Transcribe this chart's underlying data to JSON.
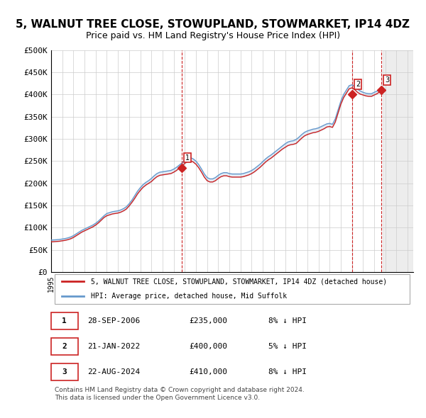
{
  "title": "5, WALNUT TREE CLOSE, STOWUPLAND, STOWMARKET, IP14 4DZ",
  "subtitle": "Price paid vs. HM Land Registry's House Price Index (HPI)",
  "xlabel": "",
  "ylabel": "",
  "ylim": [
    0,
    500000
  ],
  "yticks": [
    0,
    50000,
    100000,
    150000,
    200000,
    250000,
    300000,
    350000,
    400000,
    450000,
    500000
  ],
  "ytick_labels": [
    "£0",
    "£50K",
    "£100K",
    "£150K",
    "£200K",
    "£250K",
    "£300K",
    "£350K",
    "£400K",
    "£450K",
    "£500K"
  ],
  "xlim_start": 1995.0,
  "xlim_end": 2027.5,
  "hpi_color": "#6699cc",
  "price_color": "#cc2222",
  "bg_color": "#ffffff",
  "plot_bg_color": "#ffffff",
  "grid_color": "#cccccc",
  "title_fontsize": 11,
  "subtitle_fontsize": 9,
  "annotation_marker_color": "#cc2222",
  "sales": [
    {
      "label": "1",
      "date_num": 2006.74,
      "price": 235000
    },
    {
      "label": "2",
      "date_num": 2022.05,
      "price": 400000
    },
    {
      "label": "3",
      "date_num": 2024.64,
      "price": 410000
    }
  ],
  "legend_line1": "5, WALNUT TREE CLOSE, STOWUPLAND, STOWMARKET, IP14 4DZ (detached house)",
  "legend_line2": "HPI: Average price, detached house, Mid Suffolk",
  "table_rows": [
    {
      "num": "1",
      "date": "28-SEP-2006",
      "price": "£235,000",
      "note": "8% ↓ HPI"
    },
    {
      "num": "2",
      "date": "21-JAN-2022",
      "price": "£400,000",
      "note": "5% ↓ HPI"
    },
    {
      "num": "3",
      "date": "22-AUG-2024",
      "price": "£410,000",
      "note": "8% ↓ HPI"
    }
  ],
  "footer": "Contains HM Land Registry data © Crown copyright and database right 2024.\nThis data is licensed under the Open Government Licence v3.0.",
  "hpi_data_x": [
    1995.0,
    1995.25,
    1995.5,
    1995.75,
    1996.0,
    1996.25,
    1996.5,
    1996.75,
    1997.0,
    1997.25,
    1997.5,
    1997.75,
    1998.0,
    1998.25,
    1998.5,
    1998.75,
    1999.0,
    1999.25,
    1999.5,
    1999.75,
    2000.0,
    2000.25,
    2000.5,
    2000.75,
    2001.0,
    2001.25,
    2001.5,
    2001.75,
    2002.0,
    2002.25,
    2002.5,
    2002.75,
    2003.0,
    2003.25,
    2003.5,
    2003.75,
    2004.0,
    2004.25,
    2004.5,
    2004.75,
    2005.0,
    2005.25,
    2005.5,
    2005.75,
    2006.0,
    2006.25,
    2006.5,
    2006.75,
    2007.0,
    2007.25,
    2007.5,
    2007.75,
    2008.0,
    2008.25,
    2008.5,
    2008.75,
    2009.0,
    2009.25,
    2009.5,
    2009.75,
    2010.0,
    2010.25,
    2010.5,
    2010.75,
    2011.0,
    2011.25,
    2011.5,
    2011.75,
    2012.0,
    2012.25,
    2012.5,
    2012.75,
    2013.0,
    2013.25,
    2013.5,
    2013.75,
    2014.0,
    2014.25,
    2014.5,
    2014.75,
    2015.0,
    2015.25,
    2015.5,
    2015.75,
    2016.0,
    2016.25,
    2016.5,
    2016.75,
    2017.0,
    2017.25,
    2017.5,
    2017.75,
    2018.0,
    2018.25,
    2018.5,
    2018.75,
    2019.0,
    2019.25,
    2019.5,
    2019.75,
    2020.0,
    2020.25,
    2020.5,
    2020.75,
    2021.0,
    2021.25,
    2021.5,
    2021.75,
    2022.0,
    2022.25,
    2022.5,
    2022.75,
    2023.0,
    2023.25,
    2023.5,
    2023.75,
    2024.0,
    2024.25,
    2024.5
  ],
  "hpi_data_y": [
    72000,
    72500,
    73000,
    73500,
    74500,
    75500,
    77000,
    79000,
    82000,
    86000,
    90000,
    94000,
    97000,
    100000,
    103000,
    106000,
    110000,
    115000,
    121000,
    127000,
    132000,
    134000,
    136000,
    137000,
    138000,
    140000,
    143000,
    147000,
    154000,
    162000,
    172000,
    182000,
    190000,
    197000,
    202000,
    206000,
    211000,
    217000,
    222000,
    225000,
    226000,
    227000,
    228000,
    229000,
    232000,
    236000,
    241000,
    246000,
    252000,
    256000,
    258000,
    255000,
    250000,
    242000,
    232000,
    221000,
    213000,
    210000,
    210000,
    213000,
    218000,
    222000,
    224000,
    224000,
    222000,
    221000,
    221000,
    221000,
    221000,
    222000,
    224000,
    226000,
    229000,
    233000,
    238000,
    243000,
    249000,
    255000,
    260000,
    264000,
    269000,
    274000,
    279000,
    284000,
    289000,
    293000,
    295000,
    296000,
    299000,
    304000,
    310000,
    315000,
    318000,
    320000,
    322000,
    323000,
    325000,
    328000,
    331000,
    334000,
    335000,
    333000,
    345000,
    365000,
    385000,
    400000,
    410000,
    420000,
    422000,
    418000,
    412000,
    408000,
    405000,
    403000,
    402000,
    402000,
    405000,
    408000,
    412000
  ],
  "price_index_x": [
    1995.0,
    1995.25,
    1995.5,
    1995.75,
    1996.0,
    1996.25,
    1996.5,
    1996.75,
    1997.0,
    1997.25,
    1997.5,
    1997.75,
    1998.0,
    1998.25,
    1998.5,
    1998.75,
    1999.0,
    1999.25,
    1999.5,
    1999.75,
    2000.0,
    2000.25,
    2000.5,
    2000.75,
    2001.0,
    2001.25,
    2001.5,
    2001.75,
    2002.0,
    2002.25,
    2002.5,
    2002.75,
    2003.0,
    2003.25,
    2003.5,
    2003.75,
    2004.0,
    2004.25,
    2004.5,
    2004.75,
    2005.0,
    2005.25,
    2005.5,
    2005.75,
    2006.0,
    2006.25,
    2006.5,
    2006.75,
    2007.0,
    2007.25,
    2007.5,
    2007.75,
    2008.0,
    2008.25,
    2008.5,
    2008.75,
    2009.0,
    2009.25,
    2009.5,
    2009.75,
    2010.0,
    2010.25,
    2010.5,
    2010.75,
    2011.0,
    2011.25,
    2011.5,
    2011.75,
    2012.0,
    2012.25,
    2012.5,
    2012.75,
    2013.0,
    2013.25,
    2013.5,
    2013.75,
    2014.0,
    2014.25,
    2014.5,
    2014.75,
    2015.0,
    2015.25,
    2015.5,
    2015.75,
    2016.0,
    2016.25,
    2016.5,
    2016.75,
    2017.0,
    2017.25,
    2017.5,
    2017.75,
    2018.0,
    2018.25,
    2018.5,
    2018.75,
    2019.0,
    2019.25,
    2019.5,
    2019.75,
    2020.0,
    2020.25,
    2020.5,
    2020.75,
    2021.0,
    2021.25,
    2021.5,
    2021.75,
    2022.0,
    2022.25,
    2022.5,
    2022.75,
    2023.0,
    2023.25,
    2023.5,
    2023.75,
    2024.0,
    2024.25,
    2024.5
  ],
  "price_index_y": [
    68000,
    68500,
    69000,
    69500,
    70500,
    71500,
    73000,
    75000,
    78000,
    82000,
    86000,
    90000,
    93000,
    96000,
    99000,
    102000,
    106000,
    111000,
    117000,
    123000,
    127000,
    129000,
    131000,
    132000,
    133000,
    135000,
    138000,
    142000,
    149000,
    157000,
    166000,
    176000,
    184000,
    191000,
    196000,
    200000,
    204000,
    210000,
    215000,
    218000,
    219000,
    220000,
    221000,
    222000,
    225000,
    229000,
    234000,
    239000,
    245000,
    249000,
    251000,
    248000,
    243000,
    235000,
    225000,
    214000,
    206000,
    203000,
    203000,
    206000,
    211000,
    215000,
    217000,
    217000,
    215000,
    214000,
    214000,
    214000,
    214000,
    215000,
    217000,
    219000,
    222000,
    226000,
    231000,
    236000,
    242000,
    248000,
    253000,
    257000,
    262000,
    267000,
    272000,
    277000,
    281000,
    285000,
    287000,
    288000,
    290000,
    296000,
    302000,
    307000,
    310000,
    312000,
    314000,
    315000,
    317000,
    320000,
    323000,
    327000,
    328000,
    326000,
    338000,
    358000,
    378000,
    393000,
    403000,
    413000,
    415000,
    411000,
    405000,
    401000,
    399000,
    397000,
    396000,
    396000,
    399000,
    402000,
    406000
  ]
}
